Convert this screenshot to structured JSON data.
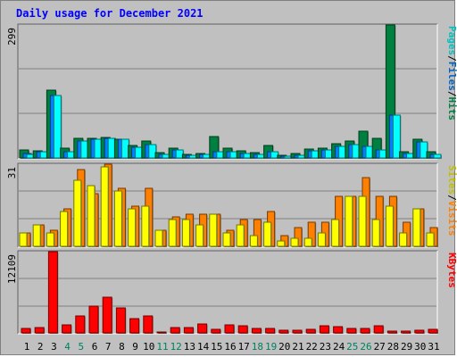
{
  "chart_data": [
    {
      "type": "bar",
      "title": "Daily usage for December 2021",
      "categories": [
        "1",
        "2",
        "3",
        "4",
        "5",
        "6",
        "7",
        "8",
        "9",
        "10",
        "11",
        "12",
        "13",
        "14",
        "15",
        "16",
        "17",
        "18",
        "19",
        "20",
        "21",
        "22",
        "23",
        "24",
        "25",
        "26",
        "27",
        "28",
        "29",
        "30",
        "31"
      ],
      "weekend_days": [
        "4",
        "5",
        "11",
        "12",
        "18",
        "19",
        "25",
        "26"
      ],
      "ytick": "299",
      "ylim": [
        0,
        299
      ],
      "right_label": [
        "Pages",
        "/",
        "Files",
        "/",
        "Hits"
      ],
      "series": [
        {
          "name": "Hits",
          "color": "#008040",
          "values": [
            18,
            16,
            153,
            22,
            45,
            44,
            47,
            43,
            28,
            39,
            12,
            23,
            8,
            10,
            49,
            22,
            16,
            13,
            28,
            6,
            10,
            21,
            22,
            33,
            39,
            61,
            45,
            299,
            15,
            42,
            14
          ]
        },
        {
          "name": "Files",
          "color": "#0080ff",
          "values": [
            10,
            14,
            140,
            14,
            38,
            42,
            44,
            42,
            24,
            30,
            9,
            18,
            7,
            9,
            14,
            15,
            11,
            9,
            15,
            5,
            7,
            16,
            18,
            26,
            30,
            26,
            19,
            97,
            10,
            37,
            9
          ]
        },
        {
          "name": "Pages",
          "color": "#00ffff",
          "values": [
            9,
            14,
            140,
            14,
            38,
            42,
            44,
            42,
            24,
            30,
            9,
            18,
            7,
            9,
            14,
            15,
            11,
            9,
            15,
            5,
            7,
            16,
            18,
            26,
            30,
            26,
            19,
            97,
            10,
            37,
            9
          ]
        }
      ]
    },
    {
      "type": "bar",
      "categories": [
        "1",
        "2",
        "3",
        "4",
        "5",
        "6",
        "7",
        "8",
        "9",
        "10",
        "11",
        "12",
        "13",
        "14",
        "15",
        "16",
        "17",
        "18",
        "19",
        "20",
        "21",
        "22",
        "23",
        "24",
        "25",
        "26",
        "27",
        "28",
        "29",
        "30",
        "31"
      ],
      "ytick": "31",
      "ylim": [
        0,
        31
      ],
      "right_label": [
        "Sites",
        "/",
        "Visits"
      ],
      "series": [
        {
          "name": "Visits",
          "color": "#ff8000",
          "values": [
            5,
            8,
            6,
            14,
            29,
            20,
            31,
            22,
            15,
            22,
            6,
            11,
            12,
            12,
            12,
            6,
            10,
            10,
            13,
            4,
            7,
            9,
            9,
            19,
            19,
            26,
            19,
            19,
            9,
            14,
            7
          ]
        },
        {
          "name": "Sites",
          "color": "#ffff00",
          "values": [
            5,
            8,
            5,
            13,
            25,
            23,
            30,
            21,
            14,
            15,
            6,
            10,
            10,
            8,
            12,
            5,
            8,
            4,
            9,
            2,
            3,
            3,
            5,
            10,
            19,
            19,
            10,
            15,
            5,
            14,
            5
          ]
        }
      ]
    },
    {
      "type": "bar",
      "categories": [
        "1",
        "2",
        "3",
        "4",
        "5",
        "6",
        "7",
        "8",
        "9",
        "10",
        "11",
        "12",
        "13",
        "14",
        "15",
        "16",
        "17",
        "18",
        "19",
        "20",
        "21",
        "22",
        "23",
        "24",
        "25",
        "26",
        "27",
        "28",
        "29",
        "30",
        "31"
      ],
      "ytick": "12109",
      "ylim": [
        0,
        12109
      ],
      "right_label": [
        "KBytes"
      ],
      "series": [
        {
          "name": "KBytes",
          "color": "#ff0000",
          "values": [
            640,
            760,
            12109,
            1180,
            2540,
            3940,
            5330,
            3720,
            2140,
            2560,
            120,
            850,
            800,
            1370,
            540,
            1220,
            1120,
            630,
            640,
            440,
            420,
            500,
            1020,
            990,
            640,
            730,
            1000,
            210,
            280,
            360,
            480
          ]
        }
      ]
    }
  ]
}
